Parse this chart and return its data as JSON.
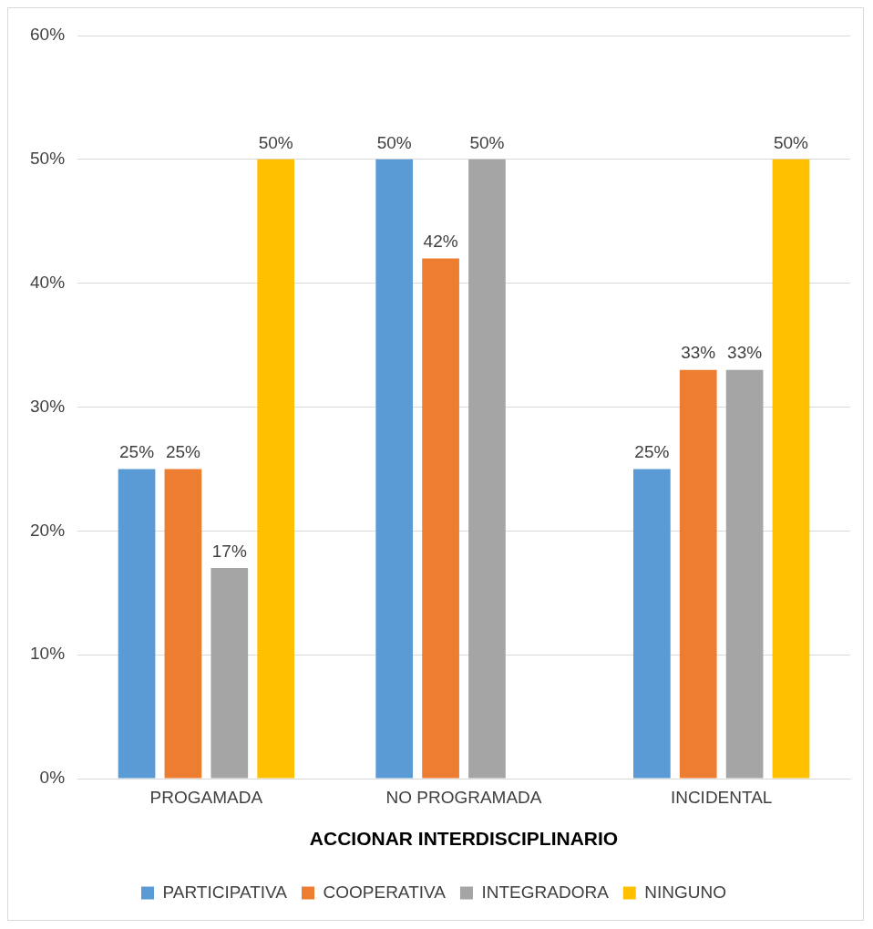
{
  "chart_data": {
    "type": "bar",
    "xlabel": "ACCIONAR INTERDISCIPLINARIO",
    "categories": [
      "PROGAMADA",
      "NO PROGRAMADA",
      "INCIDENTAL"
    ],
    "series": [
      {
        "name": "PARTICIPATIVA",
        "color": "#5b9bd5",
        "values": [
          25,
          50,
          25
        ],
        "value_labels": [
          "25%",
          "50%",
          "25%"
        ]
      },
      {
        "name": "COOPERATIVA",
        "color": "#ed7d31",
        "values": [
          25,
          42,
          33
        ],
        "value_labels": [
          "25%",
          "42%",
          "33%"
        ]
      },
      {
        "name": "INTEGRADORA",
        "color": "#a5a5a5",
        "values": [
          17,
          50,
          33
        ],
        "value_labels": [
          "17%",
          "50%",
          "33%"
        ]
      },
      {
        "name": "NINGUNO",
        "color": "#ffc000",
        "values": [
          50,
          null,
          50
        ],
        "value_labels": [
          "50%",
          null,
          "50%"
        ]
      }
    ],
    "ylim": [
      0,
      60
    ],
    "yticks": [
      {
        "value": 0,
        "label": "0%"
      },
      {
        "value": 10,
        "label": "10%"
      },
      {
        "value": 20,
        "label": "20%"
      },
      {
        "value": 30,
        "label": "30%"
      },
      {
        "value": 40,
        "label": "40%"
      },
      {
        "value": 50,
        "label": "50%"
      },
      {
        "value": 60,
        "label": "60%"
      }
    ],
    "grid": "y",
    "legend": "bottom"
  }
}
